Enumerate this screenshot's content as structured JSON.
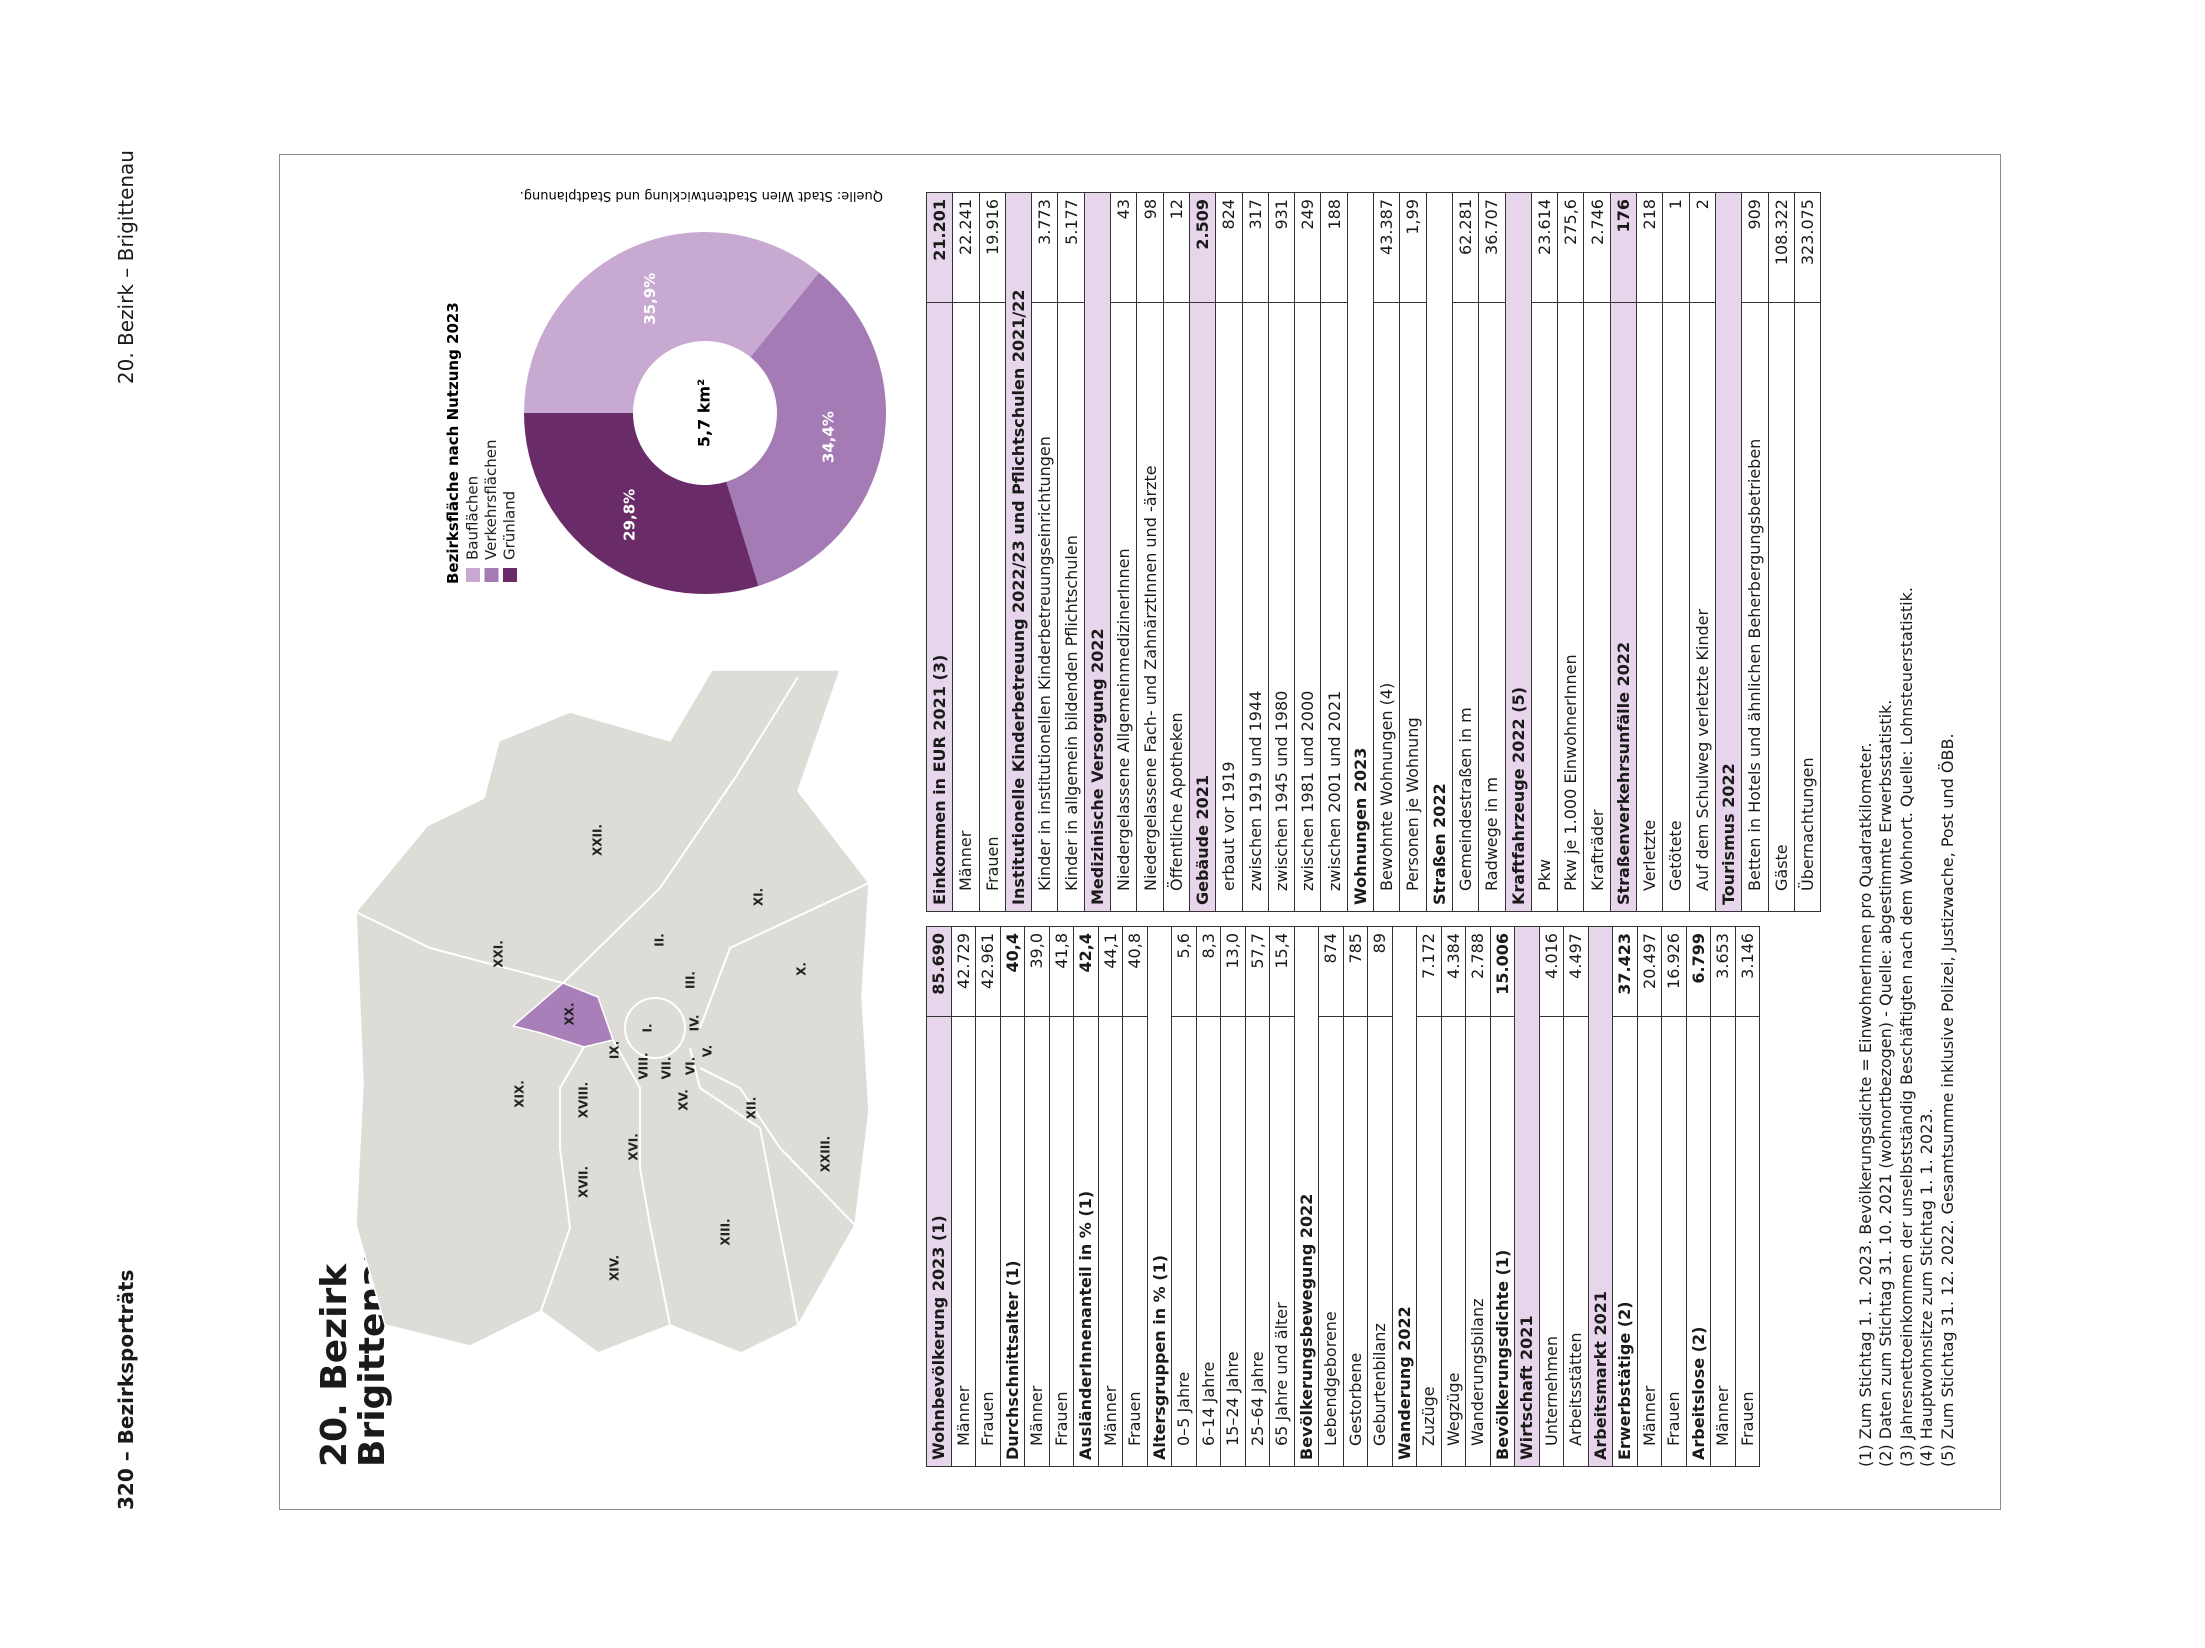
{
  "header": {
    "left": "320 – Bezirksporträts",
    "right": "20. Bezirk – Brigittenau"
  },
  "title": [
    "20. Bezirk",
    "Brigittenau"
  ],
  "map": {
    "labels": [
      "XXI.",
      "XXII.",
      "XX.",
      "XIX.",
      "XVIII.",
      "IX.",
      "I.",
      "II.",
      "III.",
      "IV.",
      "V.",
      "VI.",
      "VII.",
      "VIII.",
      "XV.",
      "XVI.",
      "XVII.",
      "XIV.",
      "XIII.",
      "XII.",
      "X.",
      "XI.",
      "XXIII."
    ]
  },
  "donut": {
    "title": "Bezirksfläche nach Nutzung 2023",
    "categories": [
      "Bauflächen",
      "Verkehrsflächen",
      "Grünland"
    ],
    "colors": [
      "#c8a9d2",
      "#a47bb4",
      "#6a2c68"
    ],
    "values": [
      35.9,
      34.4,
      29.8
    ],
    "value_labels": [
      "35,9%",
      "34,4%",
      "29,8%"
    ],
    "center_label": "5,7 km²",
    "source": "Quelle: Stadt Wien Stadtentwicklung und Stadtplanung."
  },
  "tables": [
    {
      "groups": [
        {
          "label": "Wohnbevölkerung 2023 (1)",
          "value": "85.690",
          "highlight": true,
          "rows": [
            {
              "label": "Männer",
              "value": "42.729"
            },
            {
              "label": "Frauen",
              "value": "42.961"
            }
          ]
        },
        {
          "label": "Durchschnittsalter (1)",
          "value": "40,4",
          "rows": [
            {
              "label": "Männer",
              "value": "39,0"
            },
            {
              "label": "Frauen",
              "value": "41,8"
            }
          ]
        },
        {
          "label": "AusländerInnenanteil in % (1)",
          "value": "42,4",
          "rows": [
            {
              "label": "Männer",
              "value": "44,1"
            },
            {
              "label": "Frauen",
              "value": "40,8"
            }
          ]
        },
        {
          "label": "Altersgruppen in % (1)",
          "rows": [
            {
              "label": "0–5 Jahre",
              "value": "5,6"
            },
            {
              "label": "6–14 Jahre",
              "value": "8,3"
            },
            {
              "label": "15–24 Jahre",
              "value": "13,0"
            },
            {
              "label": "25–64 Jahre",
              "value": "57,7"
            },
            {
              "label": "65 Jahre und älter",
              "value": "15,4"
            }
          ]
        },
        {
          "label": "Bevölkerungsbewegung 2022",
          "rows": [
            {
              "label": "Lebendgeborene",
              "value": "874"
            },
            {
              "label": "Gestorbene",
              "value": "785"
            },
            {
              "label": "Geburtenbilanz",
              "value": "89"
            }
          ]
        },
        {
          "label": "Wanderung 2022",
          "rows": [
            {
              "label": "Zuzüge",
              "value": "7.172"
            },
            {
              "label": "Wegzüge",
              "value": "4.384"
            },
            {
              "label": "Wanderungsbilanz",
              "value": "2.788"
            }
          ]
        },
        {
          "label": "Bevölkerungsdichte (1)",
          "value": "15.006",
          "rows": []
        },
        {
          "label": "Wirtschaft 2021",
          "highlight": true,
          "rows": [
            {
              "label": "Unternehmen",
              "value": "4.016"
            },
            {
              "label": "Arbeitsstätten",
              "value": "4.497"
            }
          ]
        },
        {
          "label": "Arbeitsmarkt 2021",
          "highlight": true,
          "rows": []
        },
        {
          "label": "Erwerbstätige (2)",
          "value": "37.423",
          "rows": [
            {
              "label": "Männer",
              "value": "20.497"
            },
            {
              "label": "Frauen",
              "value": "16.926"
            }
          ]
        },
        {
          "label": "Arbeitslose (2)",
          "value": "6.799",
          "rows": [
            {
              "label": "Männer",
              "value": "3.653"
            },
            {
              "label": "Frauen",
              "value": "3.146"
            }
          ]
        }
      ]
    },
    {
      "groups": [
        {
          "label": "Einkommen in EUR 2021 (3)",
          "value": "21.201",
          "highlight": true,
          "rows": [
            {
              "label": "Männer",
              "value": "22.241"
            },
            {
              "label": "Frauen",
              "value": "19.916"
            }
          ]
        },
        {
          "label": "Institutionelle Kinderbetreuung 2022/23 und Pflichtschulen 2021/22",
          "highlight": true,
          "rows": [
            {
              "label": "Kinder in institutionellen Kinderbetreuungseinrichtungen",
              "value": "3.773"
            },
            {
              "label": "Kinder in allgemein bildenden Pflichtschulen",
              "value": "5.177"
            }
          ]
        },
        {
          "label": "Medizinische Versorgung 2022",
          "highlight": true,
          "rows": [
            {
              "label": "Niedergelassene AllgemeinmedizinerInnen",
              "value": "43"
            },
            {
              "label": "Niedergelassene Fach- und ZahnärztInnen und -ärzte",
              "value": "98"
            },
            {
              "label": "Öffentliche Apotheken",
              "value": "12"
            }
          ]
        },
        {
          "label": "Gebäude 2021",
          "value": "2.509",
          "highlight": true,
          "rows": [
            {
              "label": "erbaut vor 1919",
              "value": "824"
            },
            {
              "label": "zwischen 1919 und 1944",
              "value": "317"
            },
            {
              "label": "zwischen 1945 und 1980",
              "value": "931"
            },
            {
              "label": "zwischen 1981 und 2000",
              "value": "249"
            },
            {
              "label": "zwischen 2001 und 2021",
              "value": "188"
            }
          ]
        },
        {
          "label": "Wohnungen 2023",
          "rows": [
            {
              "label": "Bewohnte Wohnungen (4)",
              "value": "43.387"
            },
            {
              "label": "Personen je Wohnung",
              "value": "1,99"
            }
          ]
        },
        {
          "label": "Straßen 2022",
          "rows": [
            {
              "label": "Gemeindestraßen in m",
              "value": "62.281"
            },
            {
              "label": "Radwege in m",
              "value": "36.707"
            }
          ]
        },
        {
          "label": "Kraftfahrzeuge 2022 (5)",
          "highlight": true,
          "rows": [
            {
              "label": "Pkw",
              "value": "23.614"
            },
            {
              "label": "Pkw je 1.000 EinwohnerInnen",
              "value": "275,6"
            },
            {
              "label": "Krafträder",
              "value": "2.746"
            }
          ]
        },
        {
          "label": "Straßenverkehrsunfälle 2022",
          "value": "176",
          "highlight": true,
          "rows": [
            {
              "label": "Verletzte",
              "value": "218"
            },
            {
              "label": "Getötete",
              "value": "1"
            },
            {
              "label": "Auf dem Schulweg verletzte Kinder",
              "value": "2"
            }
          ]
        },
        {
          "label": "Tourismus 2022",
          "highlight": true,
          "rows": [
            {
              "label": "Betten in Hotels und ähnlichen Beherbergungsbetrieben",
              "value": "909"
            },
            {
              "label": "Gäste",
              "value": "108.322"
            },
            {
              "label": "Übernachtungen",
              "value": "323.075"
            }
          ]
        }
      ]
    }
  ],
  "footnotes": [
    "(1) Zum Stichtag 1. 1. 2023. Bevölkerungsdichte = EinwohnerInnen pro Quadratkilometer.",
    "(2) Daten zum Stichtag 31. 10. 2021 (wohnortbezogen) - Quelle: abgestimmte Erwerbsstatistik.",
    "(3) Jahresnettoeinkommen der unselbstständig Beschäftigten nach dem Wohnort. Quelle: Lohnsteuerstatistik.",
    "(4) Hauptwohnsitze zum Stichtag 1. 1. 2023.",
    "(5) Zum Stichtag 31. 12. 2022. Gesamtsumme inklusive Polizei, Justizwache, Post und ÖBB."
  ]
}
